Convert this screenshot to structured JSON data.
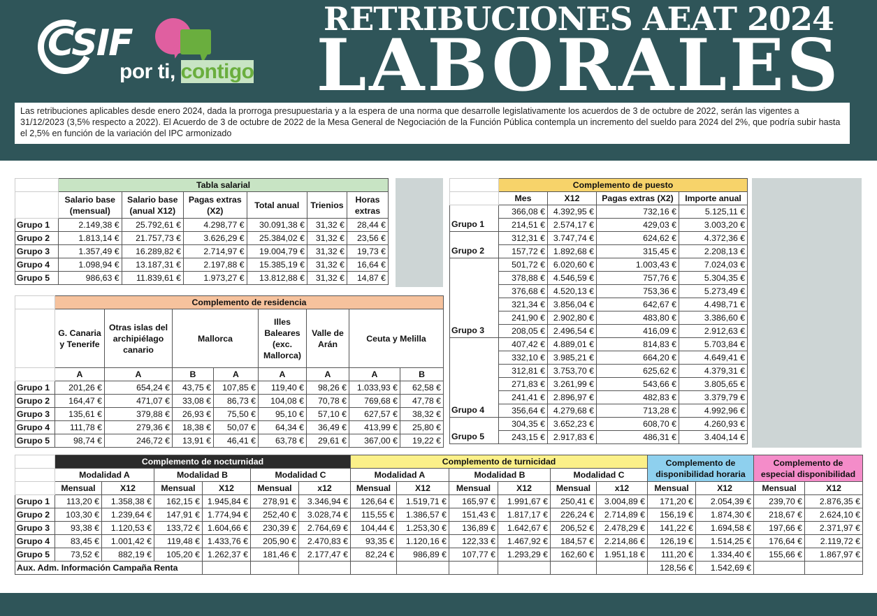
{
  "header": {
    "logo_text": "CSIF",
    "slogan_a": "por ti, ",
    "slogan_b": "contigo",
    "title_line1": "RETRIBUCIONES AEAT 2024",
    "title_line2": "LABORALES",
    "intro": "Las retribuciones aplicables desde enero 2024, dada la prorroga presupuestaria y a la espera de una norma que desarrolle legislativamente los acuerdos de 3 de octubre de 2022, serán las vigentes a 31/12/2023 (3,5% respecto a 2022). El Acuerdo de 3 de octubre de 2022 de la Mesa General de Negociación de la Función Pública contempla un incremento del sueldo para 2024 del 2%, que podría subir hasta el 2,5% en función de la variación del IPC armonizado"
  },
  "colors": {
    "header_bg": "#2f5559",
    "salarial": "#c8e4c4",
    "residencia": "#f6c29d",
    "puesto": "#f7d36a",
    "nocturnidad": "#2b2b2b",
    "turnicidad": "#fbf089",
    "disp_horaria": "#8ed0ee",
    "esp_disp": "#f48cc9"
  },
  "salarial": {
    "title": "Tabla salarial",
    "headers": [
      "Salario base (mensual)",
      "Salario base (anual X12)",
      "Pagas extras (X2)",
      "Total anual",
      "Trienios",
      "Horas extras"
    ],
    "rows": [
      {
        "label": "Grupo 1",
        "values": [
          "2.149,38 €",
          "25.792,61 €",
          "4.298,77 €",
          "30.091,38 €",
          "31,32 €",
          "28,44 €"
        ]
      },
      {
        "label": "Grupo 2",
        "values": [
          "1.813,14 €",
          "21.757,73 €",
          "3.626,29 €",
          "25.384,02 €",
          "31,32 €",
          "23,56 €"
        ]
      },
      {
        "label": "Grupo 3",
        "values": [
          "1.357,49 €",
          "16.289,82 €",
          "2.714,97 €",
          "19.004,79 €",
          "31,32 €",
          "19,73 €"
        ]
      },
      {
        "label": "Grupo 4",
        "values": [
          "1.098,94 €",
          "13.187,31 €",
          "2.197,88 €",
          "15.385,19 €",
          "31,32 €",
          "16,64 €"
        ]
      },
      {
        "label": "Grupo 5",
        "values": [
          "986,63 €",
          "11.839,61 €",
          "1.973,27 €",
          "13.812,88 €",
          "31,32 €",
          "14,87 €"
        ]
      }
    ]
  },
  "residencia": {
    "title": "Complemento de residencia",
    "headers": [
      "G. Canaria y Tenerife",
      "Otras islas del archipiélago canario",
      "Mallorca",
      "Illes Baleares (exc. Mallorca)",
      "Valle de Arán",
      "Ceuta y Melilla"
    ],
    "subheaders": [
      "A",
      "A",
      "B",
      "A",
      "A",
      "A",
      "A",
      "B"
    ],
    "rows": [
      {
        "label": "Grupo 1",
        "values": [
          "201,26 €",
          "654,24 €",
          "43,75 €",
          "107,85 €",
          "119,40 €",
          "98,26 €",
          "1.033,93 €",
          "62,58 €"
        ]
      },
      {
        "label": "Grupo 2",
        "values": [
          "164,47 €",
          "471,07 €",
          "33,08 €",
          "86,73 €",
          "104,08 €",
          "70,78 €",
          "769,68 €",
          "47,78 €"
        ]
      },
      {
        "label": "Grupo 3",
        "values": [
          "135,61 €",
          "379,88 €",
          "26,93 €",
          "75,50 €",
          "95,10 €",
          "57,10 €",
          "627,57 €",
          "38,32 €"
        ]
      },
      {
        "label": "Grupo 4",
        "values": [
          "111,78 €",
          "279,36 €",
          "18,38 €",
          "50,07 €",
          "64,34 €",
          "36,49 €",
          "413,99 €",
          "25,80 €"
        ]
      },
      {
        "label": "Grupo 5",
        "values": [
          "98,74 €",
          "246,72 €",
          "13,91 €",
          "46,41 €",
          "63,78 €",
          "29,61 €",
          "367,00 €",
          "19,22 €"
        ]
      }
    ]
  },
  "puesto": {
    "title": "Complemento de puesto",
    "headers": [
      "Mes",
      "X12",
      "Pagas extras (X2)",
      "Importe anual"
    ],
    "groups": [
      {
        "label": "Grupo 1",
        "rows": [
          [
            "366,08 €",
            "4.392,95 €",
            "732,16 €",
            "5.125,11 €"
          ],
          [
            "214,51 €",
            "2.574,17 €",
            "429,03 €",
            "3.003,20 €"
          ]
        ]
      },
      {
        "label": "Grupo 2",
        "rows": [
          [
            "312,31 €",
            "3.747,74 €",
            "624,62 €",
            "4.372,36 €"
          ],
          [
            "157,72 €",
            "1.892,68 €",
            "315,45 €",
            "2.208,13 €"
          ]
        ]
      },
      {
        "label": "Grupo 3",
        "rows": [
          [
            "501,72 €",
            "6.020,60 €",
            "1.003,43 €",
            "7.024,03 €"
          ],
          [
            "378,88 €",
            "4.546,59 €",
            "757,76 €",
            "5.304,35 €"
          ],
          [
            "376,68 €",
            "4.520,13 €",
            "753,36 €",
            "5.273,49 €"
          ],
          [
            "321,34 €",
            "3.856,04 €",
            "642,67 €",
            "4.498,71 €"
          ],
          [
            "241,90 €",
            "2.902,80 €",
            "483,80 €",
            "3.386,60 €"
          ],
          [
            "208,05 €",
            "2.496,54 €",
            "416,09 €",
            "2.912,63 €"
          ]
        ]
      },
      {
        "label": "Grupo 4",
        "rows": [
          [
            "407,42 €",
            "4.889,01 €",
            "814,83 €",
            "5.703,84 €"
          ],
          [
            "332,10 €",
            "3.985,21 €",
            "664,20 €",
            "4.649,41 €"
          ],
          [
            "312,81 €",
            "3.753,70 €",
            "625,62 €",
            "4.379,31 €"
          ],
          [
            "271,83 €",
            "3.261,99 €",
            "543,66 €",
            "3.805,65 €"
          ],
          [
            "241,41 €",
            "2.896,97 €",
            "482,83 €",
            "3.379,79 €"
          ],
          [
            "356,64 €",
            "4.279,68 €",
            "713,28 €",
            "4.992,96 €"
          ]
        ]
      },
      {
        "label": "Grupo 5",
        "rows": [
          [
            "304,35 €",
            "3.652,23 €",
            "608,70 €",
            "4.260,93 €"
          ],
          [
            "243,15 €",
            "2.917,83 €",
            "486,31 €",
            "3.404,14 €"
          ]
        ]
      }
    ]
  },
  "bottom": {
    "nocturnidad": "Complemento de nocturnidad",
    "turnicidad": "Complemento de turnicidad",
    "disp_horaria": "Complemento de disponibilidad horaria",
    "esp_disp": "Complemento de especial disponibilidad",
    "modalidades": [
      "Modalidad A",
      "Modalidad B",
      "Modalidad C",
      "Modalidad A",
      "Modalidad B",
      "Modalidad C"
    ],
    "subheaders": [
      "Mensual",
      "X12",
      "Mensual",
      "X12",
      "Mensual",
      "x12",
      "Mensual",
      "X12",
      "Mensual",
      "X12",
      "Mensual",
      "x12",
      "Mensual",
      "X12",
      "Mensual",
      "X12"
    ],
    "rows": [
      {
        "label": "Grupo 1",
        "values": [
          "113,20 €",
          "1.358,38 €",
          "162,15 €",
          "1.945,84 €",
          "278,91 €",
          "3.346,94 €",
          "126,64 €",
          "1.519,71 €",
          "165,97 €",
          "1.991,67 €",
          "250,41 €",
          "3.004,89 €",
          "171,20 €",
          "2.054,39 €",
          "239,70 €",
          "2.876,35 €"
        ]
      },
      {
        "label": "Grupo 2",
        "values": [
          "103,30 €",
          "1.239,64 €",
          "147,91 €",
          "1.774,94 €",
          "252,40 €",
          "3.028,74 €",
          "115,55 €",
          "1.386,57 €",
          "151,43 €",
          "1.817,17 €",
          "226,24 €",
          "2.714,89 €",
          "156,19 €",
          "1.874,30 €",
          "218,67 €",
          "2.624,10 €"
        ]
      },
      {
        "label": "Grupo 3",
        "values": [
          "93,38 €",
          "1.120,53 €",
          "133,72 €",
          "1.604,66 €",
          "230,39 €",
          "2.764,69 €",
          "104,44 €",
          "1.253,30 €",
          "136,89 €",
          "1.642,67 €",
          "206,52 €",
          "2.478,29 €",
          "141,22 €",
          "1.694,58 €",
          "197,66 €",
          "2.371,97 €"
        ]
      },
      {
        "label": "Grupo 4",
        "values": [
          "83,45 €",
          "1.001,42 €",
          "119,48 €",
          "1.433,76 €",
          "205,90 €",
          "2.470,83 €",
          "93,35 €",
          "1.120,16 €",
          "122,33 €",
          "1.467,92 €",
          "184,57 €",
          "2.214,86 €",
          "126,19 €",
          "1.514,25 €",
          "176,64 €",
          "2.119,72 €"
        ]
      },
      {
        "label": "Grupo 5",
        "values": [
          "73,52 €",
          "882,19 €",
          "105,20 €",
          "1.262,37 €",
          "181,46 €",
          "2.177,47 €",
          "82,24 €",
          "986,89 €",
          "107,77 €",
          "1.293,29 €",
          "162,60 €",
          "1.951,18 €",
          "111,20 €",
          "1.334,40 €",
          "155,66 €",
          "1.867,97 €"
        ]
      }
    ],
    "aux_label": "Aux. Adm. Información Campaña Renta",
    "aux_values": [
      "128,56 €",
      "1.542,69 €"
    ]
  }
}
